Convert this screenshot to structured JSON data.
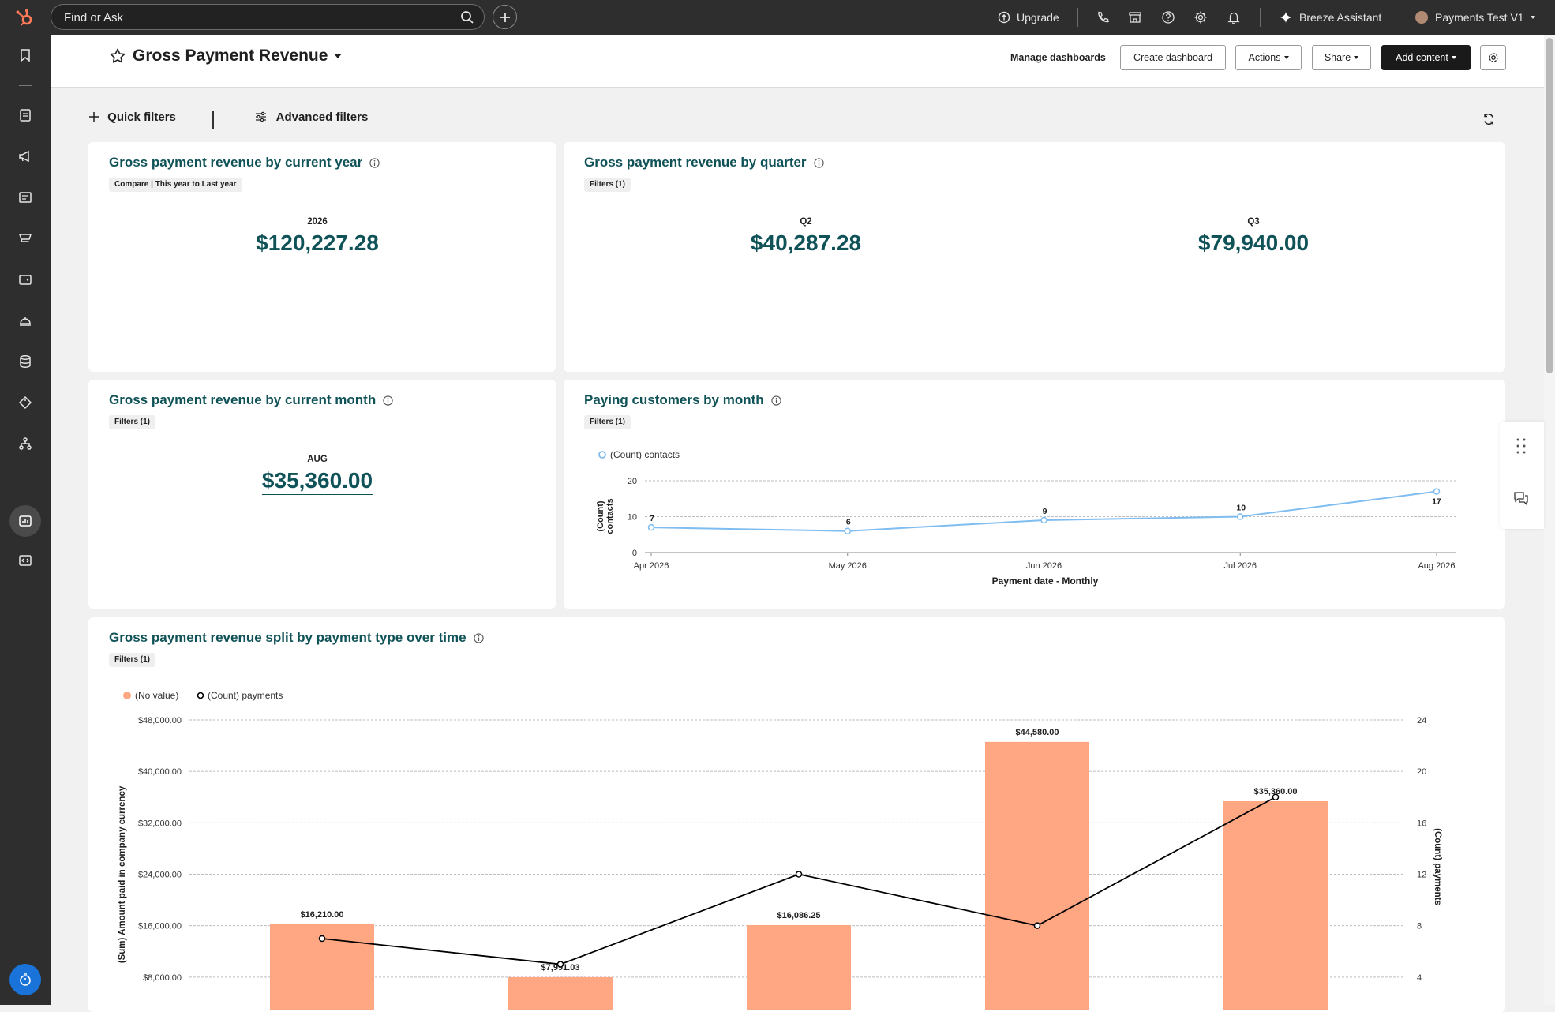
{
  "topbar": {
    "search_placeholder": "Find or Ask",
    "upgrade_label": "Upgrade",
    "assistant_label": "Breeze Assistant",
    "account_label": "Payments Test V1"
  },
  "header": {
    "title": "Gross Payment Revenue",
    "manage_label": "Manage dashboards",
    "create_label": "Create dashboard",
    "actions_label": "Actions",
    "share_label": "Share",
    "add_content_label": "Add content"
  },
  "filters": {
    "quick_label": "Quick filters",
    "advanced_label": "Advanced filters"
  },
  "cards": {
    "year": {
      "title": "Gross payment revenue by current year",
      "chip": "Compare | This year to Last year",
      "label": "2026",
      "value": "$120,227.28"
    },
    "quarter": {
      "title": "Gross payment revenue by quarter",
      "chip": "Filters (1)",
      "label1": "Q2",
      "value1": "$40,287.28",
      "label2": "Q3",
      "value2": "$79,940.00"
    },
    "month": {
      "title": "Gross payment revenue by current month",
      "chip": "Filters (1)",
      "label": "AUG",
      "value": "$35,360.00"
    },
    "customers": {
      "title": "Paying customers by month",
      "chip": "Filters (1)"
    },
    "split": {
      "title": "Gross payment revenue split by payment type over time",
      "chip": "Filters (1)"
    }
  },
  "chart_data": [
    {
      "type": "line",
      "title": "Paying customers by month",
      "x": [
        "Apr 2026",
        "May 2026",
        "Jun 2026",
        "Jul 2026",
        "Aug 2026"
      ],
      "series": [
        {
          "name": "(Count) contacts",
          "values": [
            7,
            6,
            9,
            10,
            17
          ],
          "color": "#7fbdf0"
        }
      ],
      "xlabel": "Payment date - Monthly",
      "ylabel": "(Count) contacts",
      "ylim": [
        0,
        20
      ],
      "yticks": [
        0,
        10,
        20
      ],
      "grid": true,
      "legend": "top-left"
    },
    {
      "type": "bar",
      "title": "Gross payment revenue split by payment type over time",
      "categories": [
        "",
        "",
        "",
        "",
        ""
      ],
      "series": [
        {
          "name": "(No value)",
          "type": "bar",
          "axis": "left",
          "values": [
            16210.0,
            7991.03,
            16086.25,
            44580.0,
            35360.0
          ],
          "labels": [
            "$16,210.00",
            "$7,991.03",
            "$16,086.25",
            "$44,580.00",
            "$35,360.00"
          ],
          "color": "#ffa783"
        },
        {
          "name": "(Count) payments",
          "type": "line",
          "axis": "right",
          "values": [
            7,
            5,
            12,
            8,
            18
          ],
          "color": "#000000"
        }
      ],
      "ylabel": "(Sum) Amount paid in company currency",
      "y2label": "(Count) payments",
      "ylim": [
        0,
        48000
      ],
      "yticks": [
        "$8,000.00",
        "$16,000.00",
        "$24,000.00",
        "$32,000.00",
        "$40,000.00",
        "$48,000.00"
      ],
      "y2lim": [
        0,
        24
      ],
      "y2ticks": [
        4,
        8,
        12,
        16,
        20,
        24
      ],
      "grid": true,
      "legend": "top-left"
    }
  ]
}
